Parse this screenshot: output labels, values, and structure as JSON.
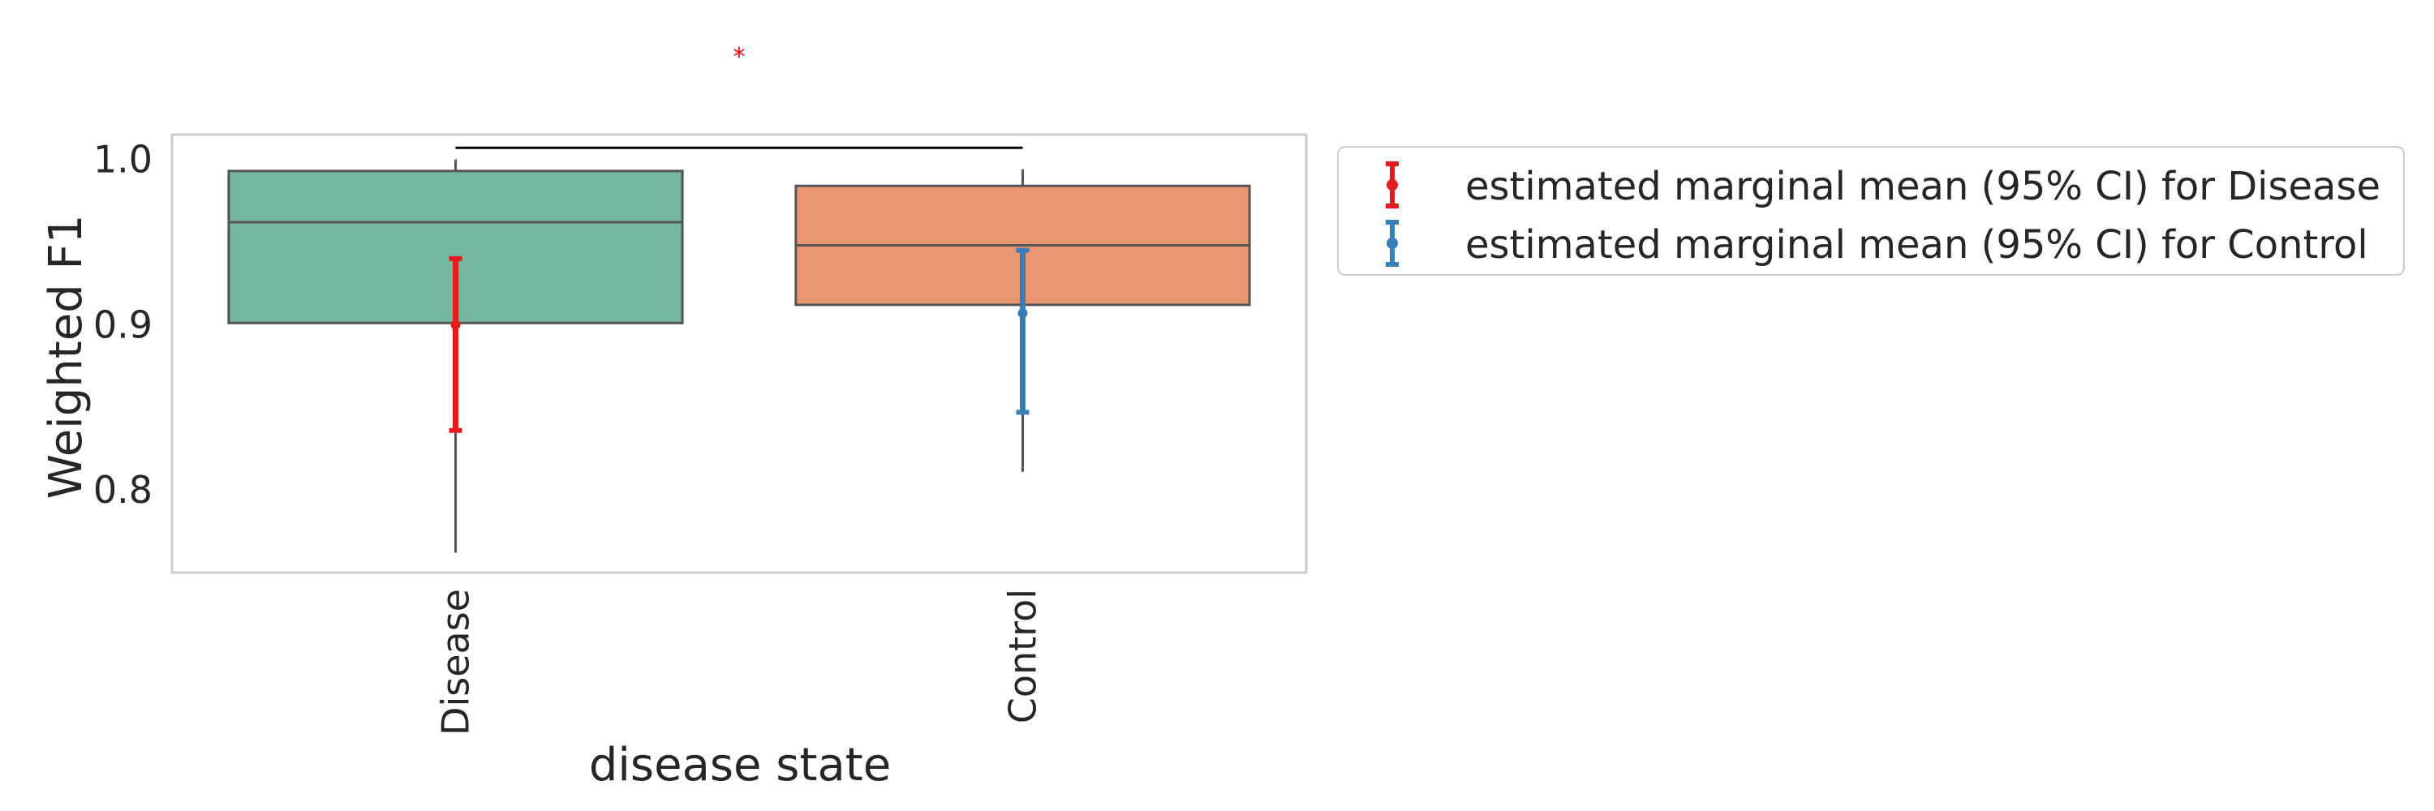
{
  "chart_data": {
    "type": "box",
    "ylabel": "Weighted F1",
    "xlabel": "disease state",
    "categories": [
      "Disease",
      "Control"
    ],
    "ylim": [
      0.75,
      1.015
    ],
    "yticks": [
      0.8,
      0.9,
      1.0
    ],
    "ytick_labels": [
      "0.8",
      "0.9",
      "1.0"
    ],
    "grid": false,
    "legend_position": "outside-right",
    "boxes": [
      {
        "name": "Disease",
        "whisker_low": 0.762,
        "q1": 0.901,
        "median": 0.962,
        "q3": 0.993,
        "whisker_high": 1.0,
        "color": "#74b6a0"
      },
      {
        "name": "Control",
        "whisker_low": 0.811,
        "q1": 0.912,
        "median": 0.948,
        "q3": 0.984,
        "whisker_high": 0.994,
        "color": "#e99673"
      }
    ],
    "marginal_means": [
      {
        "name": "estimated marginal mean (95% CI) for Disease",
        "mean": 0.9,
        "ci_low": 0.836,
        "ci_high": 0.94,
        "color": "#e41a1c"
      },
      {
        "name": "estimated marginal mean (95% CI) for Control",
        "mean": 0.907,
        "ci_low": 0.847,
        "ci_high": 0.945,
        "color": "#377eb8"
      }
    ],
    "significance": {
      "between": [
        "Disease",
        "Control"
      ],
      "label": "*",
      "y": 1.007,
      "color": "#ff0000"
    }
  }
}
